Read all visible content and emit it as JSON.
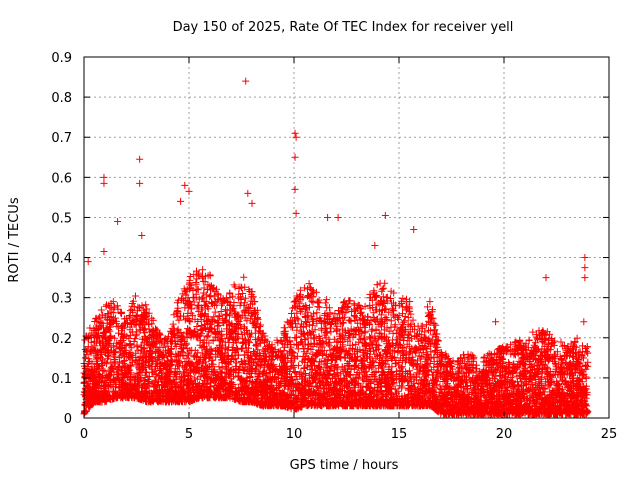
{
  "chart_data": {
    "type": "scatter",
    "title": "Day 150 of 2025, Rate Of TEC Index for receiver yell",
    "xlabel": "GPS time / hours",
    "ylabel": "ROTI / TECUs",
    "xlim": [
      0,
      25
    ],
    "ylim": [
      0,
      0.9
    ],
    "xticks": [
      "0",
      "5",
      "10",
      "15",
      "20",
      "25"
    ],
    "yticks": [
      "0",
      "0.1",
      "0.2",
      "0.3",
      "0.4",
      "0.5",
      "0.6",
      "0.7",
      "0.8",
      "0.9"
    ],
    "grid": true,
    "marker": "+",
    "color": "#ff0000",
    "notable_points": [
      {
        "x": 7.7,
        "y": 0.84
      },
      {
        "x": 10.05,
        "y": 0.71
      },
      {
        "x": 10.1,
        "y": 0.7
      },
      {
        "x": 10.05,
        "y": 0.65
      },
      {
        "x": 2.65,
        "y": 0.645
      },
      {
        "x": 0.95,
        "y": 0.6
      },
      {
        "x": 0.95,
        "y": 0.585
      },
      {
        "x": 2.65,
        "y": 0.585
      },
      {
        "x": 4.8,
        "y": 0.58
      },
      {
        "x": 10.05,
        "y": 0.57
      },
      {
        "x": 5.0,
        "y": 0.565
      },
      {
        "x": 7.8,
        "y": 0.56
      },
      {
        "x": 8.0,
        "y": 0.535
      },
      {
        "x": 4.6,
        "y": 0.54
      },
      {
        "x": 10.1,
        "y": 0.51
      },
      {
        "x": 11.6,
        "y": 0.5
      },
      {
        "x": 12.1,
        "y": 0.5
      },
      {
        "x": 14.35,
        "y": 0.505
      },
      {
        "x": 1.6,
        "y": 0.49
      },
      {
        "x": 15.7,
        "y": 0.47
      },
      {
        "x": 2.75,
        "y": 0.455
      },
      {
        "x": 13.85,
        "y": 0.43
      },
      {
        "x": 0.95,
        "y": 0.415
      },
      {
        "x": 0.2,
        "y": 0.39
      },
      {
        "x": 22.0,
        "y": 0.35
      },
      {
        "x": 23.85,
        "y": 0.4
      },
      {
        "x": 23.85,
        "y": 0.375
      },
      {
        "x": 23.85,
        "y": 0.35
      },
      {
        "x": 23.8,
        "y": 0.24
      },
      {
        "x": 19.6,
        "y": 0.24
      }
    ],
    "density_profile": {
      "hours": [
        0,
        0.5,
        1,
        1.5,
        2,
        2.5,
        3,
        3.5,
        4,
        4.5,
        5,
        5.5,
        6,
        6.5,
        7,
        7.5,
        8,
        8.5,
        9,
        9.5,
        10,
        10.5,
        11,
        11.5,
        12,
        12.5,
        13,
        13.5,
        14,
        14.5,
        15,
        15.5,
        16,
        16.5,
        17,
        17.5,
        18,
        18.5,
        19,
        19.5,
        20,
        20.5,
        21,
        21.5,
        22,
        22.5,
        23,
        23.5,
        24
      ],
      "typical_max_roti": [
        0.2,
        0.25,
        0.28,
        0.3,
        0.25,
        0.32,
        0.28,
        0.22,
        0.2,
        0.3,
        0.35,
        0.38,
        0.36,
        0.3,
        0.32,
        0.36,
        0.32,
        0.22,
        0.18,
        0.22,
        0.3,
        0.35,
        0.32,
        0.3,
        0.26,
        0.3,
        0.28,
        0.3,
        0.35,
        0.33,
        0.3,
        0.3,
        0.22,
        0.3,
        0.18,
        0.14,
        0.16,
        0.16,
        0.15,
        0.17,
        0.18,
        0.19,
        0.2,
        0.22,
        0.22,
        0.2,
        0.18,
        0.2,
        0.18
      ],
      "typical_min_roti": [
        0.01,
        0.04,
        0.04,
        0.05,
        0.05,
        0.05,
        0.04,
        0.04,
        0.04,
        0.04,
        0.04,
        0.05,
        0.05,
        0.05,
        0.05,
        0.04,
        0.04,
        0.03,
        0.03,
        0.03,
        0.02,
        0.03,
        0.03,
        0.03,
        0.03,
        0.03,
        0.03,
        0.03,
        0.03,
        0.03,
        0.03,
        0.03,
        0.03,
        0.03,
        0.01,
        0.01,
        0.01,
        0.01,
        0.01,
        0.01,
        0.01,
        0.01,
        0.01,
        0.01,
        0.01,
        0.01,
        0.01,
        0.01,
        0.01
      ]
    }
  }
}
